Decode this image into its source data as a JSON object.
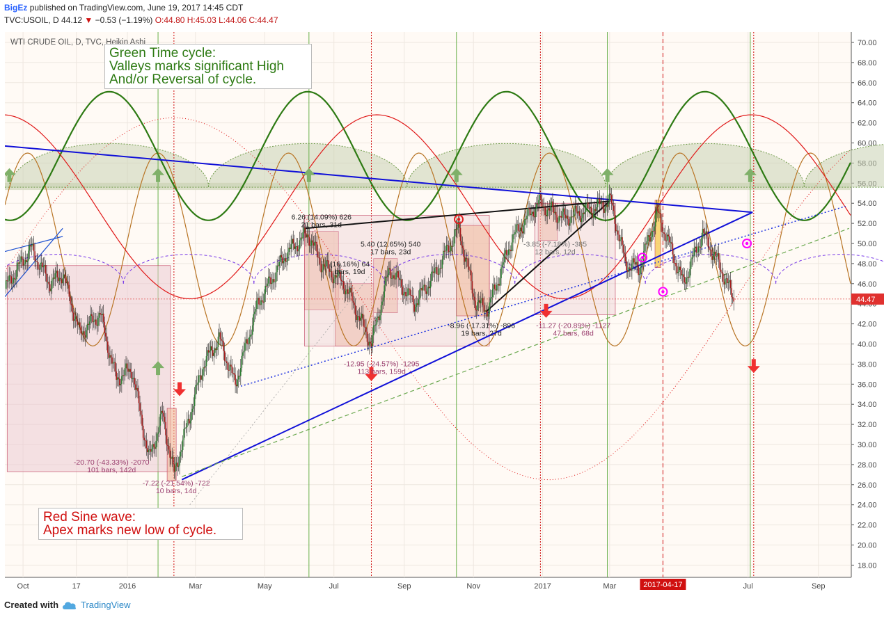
{
  "header": {
    "author": "BigEz",
    "published": "published on TradingView.com, June 19, 2017 14:45 CDT",
    "symbol_line": "TVC:USOIL, D",
    "last": "44.12",
    "change": "−0.53 (−1.19%)",
    "ohlc": "O:44.80 H:45.03 L:44.06 C:44.47"
  },
  "chart_title": "WTI CRUDE OIL, D, TVC, Heikin Ashi",
  "notes": {
    "green": [
      "Green Time cycle:",
      "Valleys marks significant High",
      "And/or Reversal of cycle."
    ],
    "red": [
      "Red Sine wave:",
      "Apex marks new low of cycle."
    ]
  },
  "footer": {
    "created": "Created with",
    "brand": "TradingView"
  },
  "colors": {
    "green_wave": "#2d7a13",
    "red_wave": "#e01818",
    "brown_wave": "#b87424",
    "trend_blue": "#1010d8",
    "candle_up": "#2e7d32",
    "candle_down": "#a51c1c",
    "price_tag": "#e0312f"
  },
  "chart_data": {
    "type": "line",
    "y_axis": {
      "position": "right",
      "range": [
        18,
        71
      ],
      "ticks": [
        "18.00",
        "20.00",
        "22.00",
        "24.00",
        "26.00",
        "28.00",
        "30.00",
        "32.00",
        "34.00",
        "36.00",
        "38.00",
        "40.00",
        "42.00",
        "44.00",
        "46.00",
        "48.00",
        "50.00",
        "52.00",
        "54.00",
        "56.00",
        "58.00",
        "60.00",
        "62.00",
        "64.00",
        "66.00",
        "68.00",
        "70.00"
      ]
    },
    "x_axis": {
      "labels": [
        "Oct",
        "17",
        "2016",
        "Mar",
        "May",
        "Jul",
        "Sep",
        "Nov",
        "2017",
        "Mar",
        "2017-04-17",
        "Jul",
        "Sep"
      ],
      "highlight": "2017-04-17"
    },
    "current_price": "44.47",
    "price_series": {
      "style": "heikin-ashi candles",
      "points": [
        [
          "2015-09-15",
          45.5
        ],
        [
          "2015-10-08",
          49.5
        ],
        [
          "2015-10-25",
          46
        ],
        [
          "2015-11-05",
          47
        ],
        [
          "2015-11-20",
          41
        ],
        [
          "2015-12-08",
          43
        ],
        [
          "2015-12-22",
          36.5
        ],
        [
          "2016-01-05",
          37.5
        ],
        [
          "2016-01-20",
          28.5
        ],
        [
          "2016-02-01",
          33
        ],
        [
          "2016-02-11",
          27
        ],
        [
          "2016-03-08",
          38
        ],
        [
          "2016-03-22",
          40.5
        ],
        [
          "2016-04-05",
          36
        ],
        [
          "2016-04-25",
          44
        ],
        [
          "2016-05-20",
          49
        ],
        [
          "2016-06-08",
          51
        ],
        [
          "2016-06-20",
          48
        ],
        [
          "2016-07-10",
          46
        ],
        [
          "2016-08-03",
          40
        ],
        [
          "2016-08-19",
          47.5
        ],
        [
          "2016-09-10",
          44
        ],
        [
          "2016-09-28",
          47
        ],
        [
          "2016-10-19",
          51.5
        ],
        [
          "2016-11-03",
          44
        ],
        [
          "2016-11-14",
          43.5
        ],
        [
          "2016-12-05",
          50.5
        ],
        [
          "2016-12-28",
          54
        ],
        [
          "2017-01-20",
          52.5
        ],
        [
          "2017-02-15",
          53.5
        ],
        [
          "2017-03-02",
          54.2
        ],
        [
          "2017-03-15",
          48
        ],
        [
          "2017-03-27",
          47.5
        ],
        [
          "2017-04-12",
          53
        ],
        [
          "2017-04-24",
          49.5
        ],
        [
          "2017-05-05",
          46
        ],
        [
          "2017-05-22",
          51
        ],
        [
          "2017-06-05",
          48
        ],
        [
          "2017-06-19",
          44.3
        ]
      ]
    },
    "series": [
      {
        "name": "Green Time cycle",
        "type": "sine",
        "period_days": 175,
        "peak_date": "2016-06-08",
        "min": 52.3,
        "max": 65.1
      },
      {
        "name": "Red Sine wave",
        "type": "sine",
        "period_days": 330,
        "peak_date": "2016-08-08",
        "min": 44.5,
        "max": 62.8
      }
    ],
    "annotations": [
      {
        "type": "range",
        "text": [
          "-20.70 (-43.33%) -2070",
          "101 bars, 142d"
        ]
      },
      {
        "type": "range",
        "text": [
          "-7.22 (-21.54%) -722",
          "10 bars, 14d"
        ]
      },
      {
        "type": "range",
        "text": [
          "6.26 (14.09%) 626",
          "21 bars, 31d"
        ]
      },
      {
        "type": "range",
        "text": [
          "(16.16%) 64",
          "bars, 19d"
        ]
      },
      {
        "type": "range",
        "text": [
          "5.40 (12.65%) 540",
          "17 bars, 23d"
        ]
      },
      {
        "type": "range",
        "text": [
          "-12.95 (-24.57%) -1295",
          "113 bars, 159d"
        ]
      },
      {
        "type": "range",
        "text": [
          "-8.96 (-17.31%) -896",
          "19 bars, 27d"
        ]
      },
      {
        "type": "range",
        "text": [
          "-3.85 (-7.18%) -385",
          "12 bars, 12d"
        ]
      },
      {
        "type": "range",
        "text": [
          "-11.27 (-20.89%) -1127",
          "47 bars, 68d"
        ]
      }
    ]
  }
}
